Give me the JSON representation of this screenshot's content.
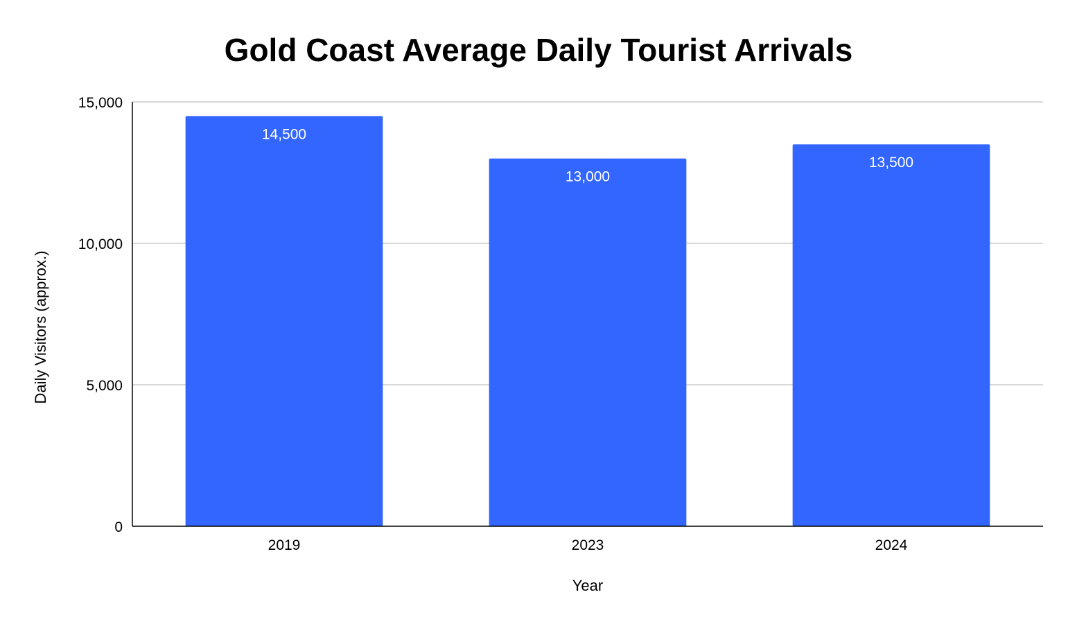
{
  "chart_data": {
    "type": "bar",
    "title": "Gold Coast Average Daily Tourist Arrivals",
    "xlabel": "Year",
    "ylabel": "Daily Visitors (approx.)",
    "categories": [
      "2019",
      "2023",
      "2024"
    ],
    "values": [
      14500,
      13000,
      13500
    ],
    "data_labels": [
      "14,500",
      "13,000",
      "13,500"
    ],
    "ylim": [
      0,
      15000
    ],
    "yticks": [
      0,
      5000,
      10000,
      15000
    ],
    "ytick_labels": [
      "0",
      "5,000",
      "10,000",
      "15,000"
    ],
    "grid": true,
    "legend": "none",
    "bar_color": "#3366ff"
  }
}
